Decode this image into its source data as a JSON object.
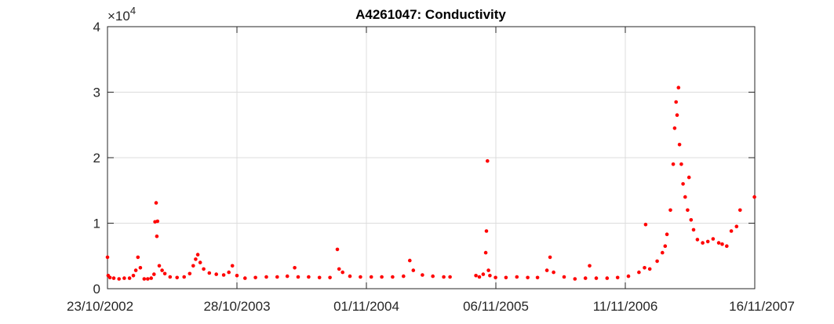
{
  "chart_data": {
    "type": "scatter",
    "title": "A4261047: Conductivity",
    "xlabel": "",
    "ylabel": "",
    "y_exponent_prefix": "×10",
    "y_exponent": "4",
    "x_domain": [
      "23/10/2002",
      "16/11/2007"
    ],
    "x_ticks": [
      "23/10/2002",
      "28/10/2003",
      "01/11/2004",
      "06/11/2005",
      "11/11/2006",
      "16/11/2007"
    ],
    "ylim": [
      0,
      40000
    ],
    "y_ticks": [
      0,
      10000,
      20000,
      30000,
      40000
    ],
    "y_tick_labels": [
      "0",
      "1",
      "2",
      "3",
      "4"
    ],
    "grid": true,
    "marker_color": "#ff0000",
    "series": [
      {
        "points": [
          [
            "23/10/2002",
            4800
          ],
          [
            "25/10/2002",
            2000
          ],
          [
            "30/10/2002",
            1700
          ],
          [
            "10/11/2002",
            1600
          ],
          [
            "25/11/2002",
            1500
          ],
          [
            "10/12/2002",
            1600
          ],
          [
            "25/12/2002",
            1600
          ],
          [
            "05/01/2003",
            2000
          ],
          [
            "12/01/2003",
            2800
          ],
          [
            "18/01/2003",
            4800
          ],
          [
            "25/01/2003",
            3200
          ],
          [
            "05/02/2003",
            1500
          ],
          [
            "15/02/2003",
            1500
          ],
          [
            "25/02/2003",
            1600
          ],
          [
            "05/03/2003",
            2200
          ],
          [
            "08/03/2003",
            10200
          ],
          [
            "11/03/2003",
            13100
          ],
          [
            "13/03/2003",
            8000
          ],
          [
            "15/03/2003",
            10300
          ],
          [
            "20/03/2003",
            3500
          ],
          [
            "28/03/2003",
            2800
          ],
          [
            "05/04/2003",
            2300
          ],
          [
            "20/04/2003",
            1800
          ],
          [
            "10/05/2003",
            1700
          ],
          [
            "30/05/2003",
            1800
          ],
          [
            "15/06/2003",
            2300
          ],
          [
            "25/06/2003",
            3500
          ],
          [
            "02/07/2003",
            4500
          ],
          [
            "08/07/2003",
            5200
          ],
          [
            "15/07/2003",
            4000
          ],
          [
            "25/07/2003",
            3000
          ],
          [
            "10/08/2003",
            2400
          ],
          [
            "30/08/2003",
            2200
          ],
          [
            "20/09/2003",
            2100
          ],
          [
            "05/10/2003",
            2500
          ],
          [
            "15/10/2003",
            3500
          ],
          [
            "28/10/2003",
            2000
          ],
          [
            "20/11/2003",
            1600
          ],
          [
            "20/12/2003",
            1700
          ],
          [
            "20/01/2004",
            1800
          ],
          [
            "20/02/2004",
            1800
          ],
          [
            "20/03/2004",
            1900
          ],
          [
            "10/04/2004",
            3200
          ],
          [
            "20/04/2004",
            1800
          ],
          [
            "20/05/2004",
            1800
          ],
          [
            "20/06/2004",
            1700
          ],
          [
            "20/07/2004",
            1700
          ],
          [
            "10/08/2004",
            6000
          ],
          [
            "15/08/2004",
            3000
          ],
          [
            "25/08/2004",
            2500
          ],
          [
            "15/09/2004",
            1900
          ],
          [
            "15/10/2004",
            1800
          ],
          [
            "15/11/2004",
            1800
          ],
          [
            "15/12/2004",
            1800
          ],
          [
            "15/01/2005",
            1800
          ],
          [
            "15/02/2005",
            1900
          ],
          [
            "05/03/2005",
            4300
          ],
          [
            "15/03/2005",
            2800
          ],
          [
            "10/04/2005",
            2100
          ],
          [
            "10/05/2005",
            1900
          ],
          [
            "10/06/2005",
            1800
          ],
          [
            "28/06/2005",
            1800
          ],
          [
            "10/09/2005",
            2000
          ],
          [
            "20/09/2005",
            1800
          ],
          [
            "01/10/2005",
            2200
          ],
          [
            "08/10/2005",
            5500
          ],
          [
            "10/10/2005",
            8800
          ],
          [
            "13/10/2005",
            19500
          ],
          [
            "16/10/2005",
            2800
          ],
          [
            "20/10/2005",
            2000
          ],
          [
            "05/11/2005",
            1700
          ],
          [
            "05/12/2005",
            1700
          ],
          [
            "05/01/2006",
            1800
          ],
          [
            "05/02/2006",
            1700
          ],
          [
            "05/03/2006",
            1700
          ],
          [
            "01/04/2006",
            2800
          ],
          [
            "10/04/2006",
            4800
          ],
          [
            "20/04/2006",
            2500
          ],
          [
            "20/05/2006",
            1800
          ],
          [
            "20/06/2006",
            1500
          ],
          [
            "20/07/2006",
            1600
          ],
          [
            "01/08/2006",
            3500
          ],
          [
            "20/08/2006",
            1600
          ],
          [
            "20/09/2006",
            1600
          ],
          [
            "20/10/2006",
            1700
          ],
          [
            "20/11/2006",
            1900
          ],
          [
            "20/12/2006",
            2500
          ],
          [
            "05/01/2007",
            3200
          ],
          [
            "08/01/2007",
            9800
          ],
          [
            "20/01/2007",
            3000
          ],
          [
            "10/02/2007",
            4200
          ],
          [
            "25/02/2007",
            5500
          ],
          [
            "05/03/2007",
            6500
          ],
          [
            "10/03/2007",
            8300
          ],
          [
            "20/03/2007",
            12000
          ],
          [
            "28/03/2007",
            19000
          ],
          [
            "01/04/2007",
            24500
          ],
          [
            "05/04/2007",
            28500
          ],
          [
            "08/04/2007",
            26500
          ],
          [
            "12/04/2007",
            30700
          ],
          [
            "15/04/2007",
            22000
          ],
          [
            "20/04/2007",
            19000
          ],
          [
            "25/04/2007",
            16000
          ],
          [
            "01/05/2007",
            14000
          ],
          [
            "08/05/2007",
            12000
          ],
          [
            "12/05/2007",
            17000
          ],
          [
            "18/05/2007",
            10500
          ],
          [
            "25/05/2007",
            9000
          ],
          [
            "05/06/2007",
            7500
          ],
          [
            "20/06/2007",
            7000
          ],
          [
            "05/07/2007",
            7200
          ],
          [
            "20/07/2007",
            7600
          ],
          [
            "05/08/2007",
            7000
          ],
          [
            "15/08/2007",
            6800
          ],
          [
            "28/08/2007",
            6500
          ],
          [
            "10/09/2007",
            8800
          ],
          [
            "25/09/2007",
            9500
          ],
          [
            "05/10/2007",
            12000
          ],
          [
            "15/11/2007",
            14000
          ]
        ]
      }
    ]
  }
}
